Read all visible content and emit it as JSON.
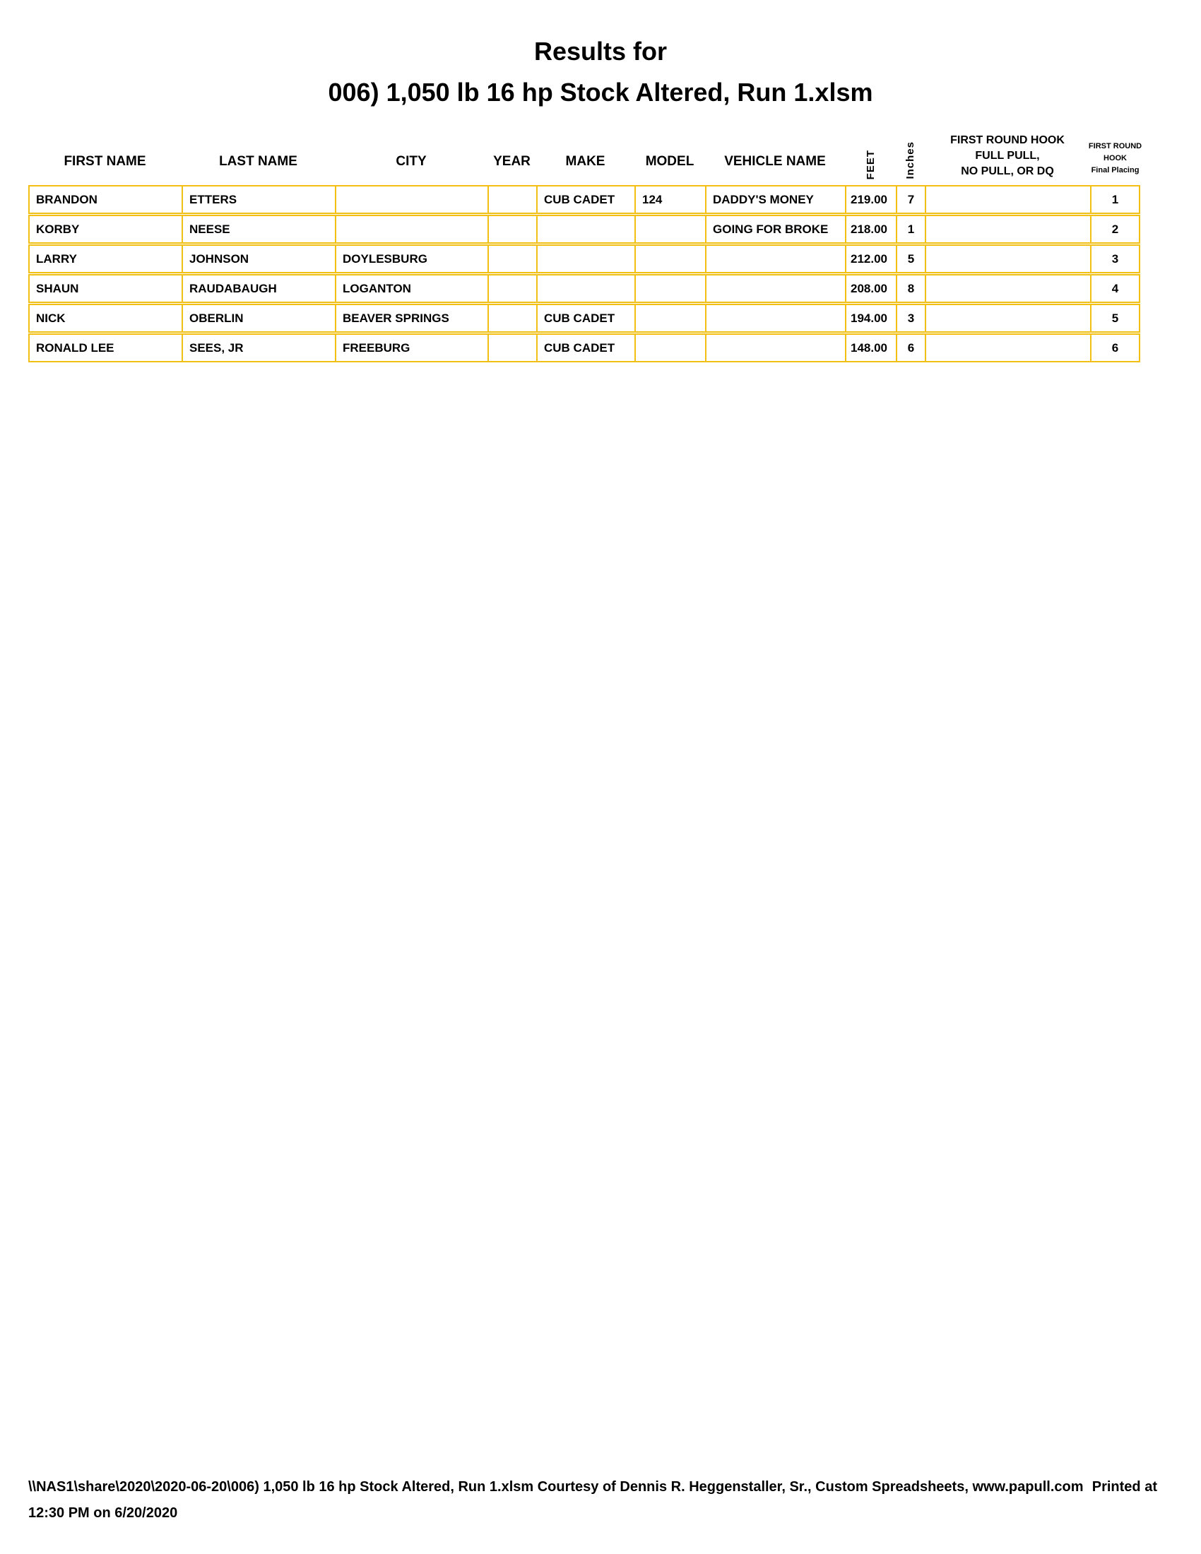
{
  "title": {
    "line1": "Results for",
    "line2": "006) 1,050 lb 16 hp Stock Altered, Run 1.xlsm"
  },
  "table": {
    "columns": [
      {
        "key": "first_name",
        "label": "FIRST NAME"
      },
      {
        "key": "last_name",
        "label": "LAST NAME"
      },
      {
        "key": "city",
        "label": "CITY"
      },
      {
        "key": "year",
        "label": "YEAR"
      },
      {
        "key": "make",
        "label": "MAKE"
      },
      {
        "key": "model",
        "label": "MODEL"
      },
      {
        "key": "vehicle_name",
        "label": "VEHICLE NAME"
      },
      {
        "key": "feet",
        "label": "FEET",
        "rotated": true
      },
      {
        "key": "inches",
        "label": "Inches",
        "rotated": true
      },
      {
        "key": "hook",
        "label_lines": [
          "FIRST ROUND HOOK",
          "FULL PULL,",
          "NO PULL, OR DQ"
        ]
      },
      {
        "key": "placing",
        "label_lines": [
          "FIRST ROUND",
          "HOOK",
          "Final Placing"
        ]
      }
    ],
    "rows": [
      {
        "first_name": "BRANDON",
        "last_name": "ETTERS",
        "city": "",
        "year": "",
        "make": "CUB CADET",
        "model": "124",
        "vehicle_name": "DADDY'S MONEY",
        "feet": "219.00",
        "inches": "7",
        "hook": "",
        "placing": "1"
      },
      {
        "first_name": "KORBY",
        "last_name": "NEESE",
        "city": "",
        "year": "",
        "make": "",
        "model": "",
        "vehicle_name": "GOING FOR BROKE",
        "feet": "218.00",
        "inches": "1",
        "hook": "",
        "placing": "2"
      },
      {
        "first_name": "LARRY",
        "last_name": "JOHNSON",
        "city": "DOYLESBURG",
        "year": "",
        "make": "",
        "model": "",
        "vehicle_name": "",
        "feet": "212.00",
        "inches": "5",
        "hook": "",
        "placing": "3"
      },
      {
        "first_name": "SHAUN",
        "last_name": "RAUDABAUGH",
        "city": "LOGANTON",
        "year": "",
        "make": "",
        "model": "",
        "vehicle_name": "",
        "feet": "208.00",
        "inches": "8",
        "hook": "",
        "placing": "4"
      },
      {
        "first_name": "NICK",
        "last_name": "OBERLIN",
        "city": "BEAVER SPRINGS",
        "year": "",
        "make": "CUB CADET",
        "model": "",
        "vehicle_name": "",
        "feet": "194.00",
        "inches": "3",
        "hook": "",
        "placing": "5"
      },
      {
        "first_name": "RONALD LEE",
        "last_name": "SEES, JR",
        "city": "FREEBURG",
        "year": "",
        "make": "CUB CADET",
        "model": "",
        "vehicle_name": "",
        "feet": "148.00",
        "inches": "6",
        "hook": "",
        "placing": "6"
      }
    ]
  },
  "footer": {
    "line1_left": "\\\\NAS1\\share\\2020\\2020-06-20\\006) 1,050 lb 16 hp Stock Altered, Run 1.xlsm  Courtesy of Dennis R. Heggenstaller, Sr., Custom Spreadsheets, www.papull.com",
    "line1_right": "Printed at",
    "line2": "12:30 PM on 6/20/2020"
  },
  "colors": {
    "table_border_gold": "#F2C014",
    "text": "#000000",
    "page_background": "#FFFFFF"
  }
}
